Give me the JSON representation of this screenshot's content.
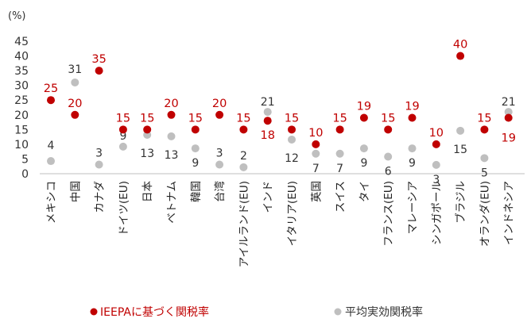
{
  "chart_data": {
    "type": "scatter",
    "unit_label": "(%)",
    "y_ticks": [
      "0",
      "5",
      "10",
      "15",
      "20",
      "25",
      "30",
      "35",
      "40",
      "45"
    ],
    "ylim": [
      0,
      45
    ],
    "grid": false,
    "legend_position": "bottom",
    "categories": [
      "メキシコ",
      "中国",
      "カナダ",
      "ドイツ(EU)",
      "日本",
      "ベトナム",
      "韓国",
      "台湾",
      "アイルランド(EU)",
      "インド",
      "イタリア(EU)",
      "英国",
      "スイス",
      "タイ",
      "フランス(EU)",
      "マレーシア",
      "シンガポール",
      "ブラジル",
      "オランダ(EU)",
      "インドネシア"
    ],
    "series": [
      {
        "name": "IEEPAに基づく関税率",
        "color": "#c00000",
        "values": [
          25,
          20,
          35,
          15,
          15,
          20,
          15,
          20,
          15,
          18,
          15,
          10,
          15,
          19,
          15,
          19,
          10,
          40,
          15,
          19
        ],
        "labels": [
          "25",
          "20",
          "35",
          "15",
          "15",
          "20",
          "15",
          "20",
          "15",
          "18",
          "15",
          "10",
          "15",
          "19",
          "15",
          "19",
          "10",
          "40",
          "15",
          "19"
        ]
      },
      {
        "name": "平均実効関税率",
        "color": "#bfbfbf",
        "values": [
          4.3,
          31,
          3.1,
          9.2,
          13.2,
          12.7,
          8.6,
          3.1,
          2.2,
          21,
          11.6,
          6.8,
          6.8,
          8.6,
          5.8,
          8.6,
          3,
          14.6,
          5.3,
          21
        ],
        "labels": [
          "4",
          "31",
          "3",
          "9",
          "13",
          "13",
          "9",
          "3",
          "2",
          "21",
          "12",
          "7",
          "7",
          "9",
          "6",
          "9",
          "3",
          "15",
          "5",
          "21"
        ]
      }
    ]
  }
}
